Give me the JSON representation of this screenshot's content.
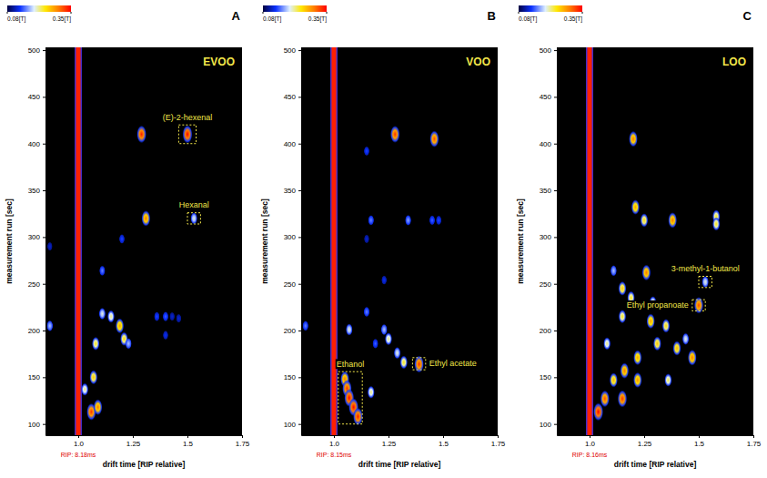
{
  "chart_data": [
    {
      "type": "heatmap",
      "panel": "A",
      "title": "EVOO",
      "x_label": "drift time [RIP relative]",
      "y_label": "measurement run [sec]",
      "xlim": [
        0.85,
        1.75
      ],
      "ylim": [
        88,
        503
      ],
      "xticks": [
        {
          "value": 1,
          "label": "1.0"
        },
        1.25,
        {
          "value": 1.5,
          "label": "1.5"
        },
        1.75
      ],
      "yticks": [
        100,
        150,
        200,
        250,
        300,
        350,
        400,
        450,
        500
      ],
      "color_range": [
        0.08,
        0.35
      ],
      "color_ticks": [
        {
          "value": 0.08,
          "label": "0.08[T]"
        },
        {
          "value": 0.35,
          "label": "0.35[T]"
        }
      ],
      "rip": {
        "x": 1,
        "label": "RIP: 8.18ms"
      },
      "spots": {
        "x": [
          1.5,
          1.29,
          1.53,
          1.31,
          0.87,
          1.11,
          1.2,
          1.11,
          1.15,
          1.19,
          1.21,
          1.23,
          1.08,
          1.4,
          1.36,
          1.4,
          1.07,
          1.03,
          1.06,
          1.09,
          1.43,
          1.46,
          0.87
        ],
        "y": [
          410,
          410,
          320,
          320,
          205,
          264,
          298,
          218,
          215,
          205,
          191,
          186,
          186,
          215,
          215,
          195,
          150,
          137,
          113,
          118,
          215,
          213,
          290
        ],
        "intensity": [
          0.35,
          0.34,
          0.2,
          0.3,
          0.18,
          0.16,
          0.14,
          0.2,
          0.22,
          0.28,
          0.25,
          0.18,
          0.24,
          0.15,
          0.14,
          0.13,
          0.26,
          0.22,
          0.33,
          0.3,
          0.12,
          0.12,
          0.12
        ]
      },
      "annotations": [
        {
          "text": "(E)-2-hexenal",
          "x": [
            1.46,
            1.54
          ],
          "y": [
            400,
            420
          ]
        },
        {
          "text": "Hexanal",
          "x": [
            1.5,
            1.56
          ],
          "y": [
            314,
            326
          ]
        }
      ]
    },
    {
      "type": "heatmap",
      "panel": "B",
      "title": "VOO",
      "x_label": "drift time [RIP relative]",
      "y_label": "measurement run [sec]",
      "xlim": [
        0.85,
        1.75
      ],
      "ylim": [
        88,
        503
      ],
      "xticks": [
        {
          "value": 1,
          "label": "1.0"
        },
        1.25,
        {
          "value": 1.5,
          "label": "1.5"
        },
        1.75
      ],
      "yticks": [
        100,
        150,
        200,
        250,
        300,
        350,
        400,
        450,
        500
      ],
      "color_range": [
        0.08,
        0.35
      ],
      "color_ticks": [
        {
          "value": 0.08,
          "label": "0.08[T]"
        },
        {
          "value": 0.35,
          "label": "0.35[T]"
        }
      ],
      "rip": {
        "x": 1,
        "label": "RIP: 8.15ms"
      },
      "spots": {
        "x": [
          1.28,
          1.46,
          1.15,
          1.17,
          1.34,
          1.45,
          1.15,
          1.23,
          1.15,
          1.07,
          1.23,
          1.25,
          1.29,
          1.32,
          1.19,
          1.39,
          1.05,
          1.06,
          1.07,
          1.09,
          1.11,
          1.17,
          0.87,
          1.48
        ],
        "y": [
          410,
          405,
          392,
          318,
          318,
          318,
          298,
          254,
          220,
          201,
          201,
          191,
          176,
          166,
          186,
          164,
          148,
          138,
          128,
          118,
          108,
          134,
          205,
          318
        ],
        "intensity": [
          0.33,
          0.32,
          0.14,
          0.16,
          0.17,
          0.15,
          0.12,
          0.13,
          0.16,
          0.2,
          0.18,
          0.22,
          0.2,
          0.24,
          0.15,
          0.33,
          0.3,
          0.33,
          0.35,
          0.35,
          0.34,
          0.22,
          0.16,
          0.14
        ]
      },
      "annotations": [
        {
          "text": "Ethyl acetate",
          "x": [
            1.36,
            1.42
          ],
          "y": [
            158,
            171
          ]
        },
        {
          "text": "Ethanol",
          "x": [
            1.02,
            1.13
          ],
          "y": [
            100,
            156
          ]
        }
      ]
    },
    {
      "type": "heatmap",
      "panel": "C",
      "title": "LOO",
      "x_label": "drift time [RIP relative]",
      "y_label": "measurement run [sec]",
      "xlim": [
        0.85,
        1.75
      ],
      "ylim": [
        88,
        503
      ],
      "xticks": [
        {
          "value": 1,
          "label": "1.0"
        },
        1.25,
        {
          "value": 1.5,
          "label": "1.5"
        },
        1.75
      ],
      "yticks": [
        100,
        150,
        200,
        250,
        300,
        350,
        400,
        450,
        500
      ],
      "color_range": [
        0.08,
        0.35
      ],
      "color_ticks": [
        {
          "value": 0.08,
          "label": "0.08[T]"
        },
        {
          "value": 0.35,
          "label": "0.35[T]"
        }
      ],
      "rip": {
        "x": 1,
        "label": "RIP: 8.16ms"
      },
      "spots": {
        "x": [
          1.53,
          1.5,
          1.2,
          1.21,
          1.25,
          1.38,
          1.58,
          1.58,
          1.11,
          1.15,
          1.19,
          1.29,
          1.28,
          1.35,
          1.44,
          1.31,
          1.4,
          1.47,
          1.15,
          1.08,
          1.22,
          1.16,
          1.11,
          1.22,
          1.36,
          1.07,
          1.15,
          1.04,
          1.26
        ],
        "y": [
          252,
          227,
          405,
          332,
          318,
          318,
          322,
          314,
          264,
          245,
          235,
          230,
          210,
          205,
          191,
          186,
          181,
          171,
          215,
          186,
          171,
          157,
          147,
          147,
          147,
          127,
          127,
          113,
          262
        ],
        "intensity": [
          0.2,
          0.32,
          0.3,
          0.28,
          0.25,
          0.3,
          0.24,
          0.24,
          0.18,
          0.26,
          0.24,
          0.22,
          0.28,
          0.25,
          0.2,
          0.26,
          0.27,
          0.3,
          0.24,
          0.22,
          0.28,
          0.3,
          0.27,
          0.29,
          0.23,
          0.32,
          0.33,
          0.35,
          0.3
        ]
      },
      "annotations": [
        {
          "text": "3-methyl-1-butanol",
          "x": [
            1.5,
            1.56
          ],
          "y": [
            246,
            258
          ]
        },
        {
          "text": "Ethyl propanoate",
          "x": [
            1.47,
            1.53
          ],
          "y": [
            221,
            233
          ]
        }
      ]
    }
  ]
}
